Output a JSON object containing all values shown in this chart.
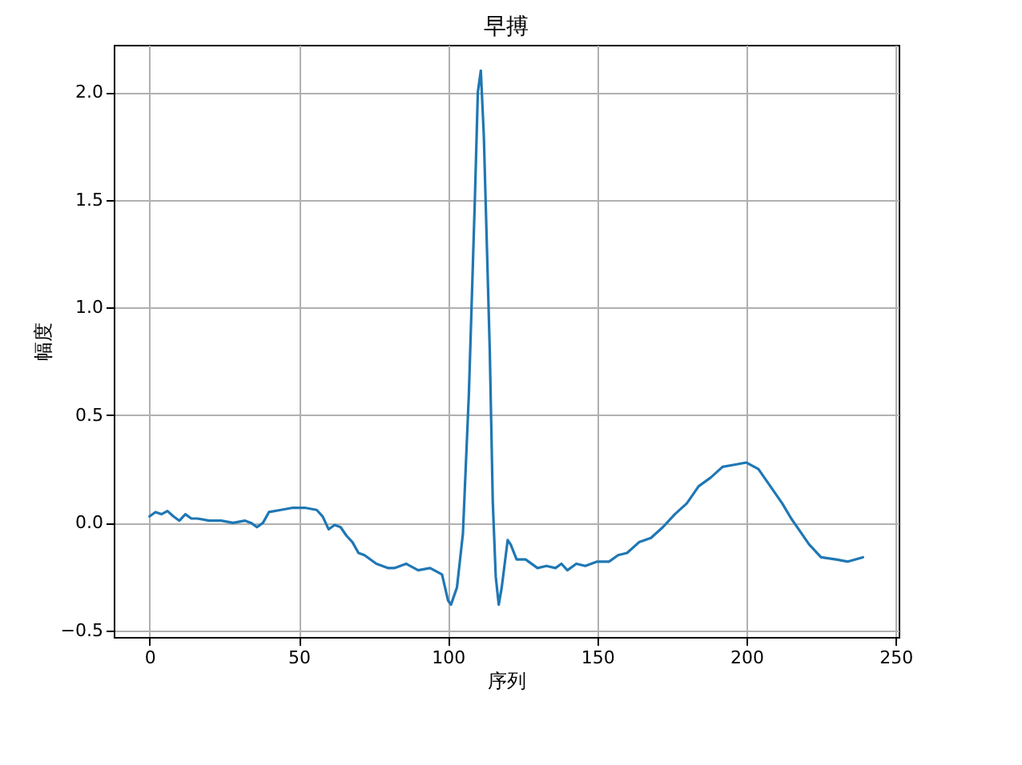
{
  "chart_data": {
    "type": "line",
    "title": "早搏",
    "xlabel": "序列",
    "ylabel": "幅度",
    "x": [
      0,
      2,
      4,
      6,
      8,
      10,
      12,
      14,
      16,
      20,
      24,
      28,
      32,
      34,
      36,
      38,
      40,
      44,
      48,
      52,
      56,
      58,
      60,
      62,
      64,
      66,
      68,
      70,
      72,
      76,
      80,
      82,
      86,
      90,
      94,
      98,
      100,
      101,
      103,
      105,
      107,
      109,
      110,
      111,
      112,
      114,
      115,
      116,
      117,
      118,
      120,
      121,
      123,
      126,
      130,
      133,
      136,
      138,
      140,
      143,
      146,
      150,
      154,
      157,
      160,
      164,
      168,
      172,
      176,
      180,
      184,
      188,
      192,
      196,
      200,
      204,
      208,
      212,
      215,
      218,
      221,
      225,
      230,
      234,
      239
    ],
    "series": [
      {
        "color": "#1f77b4",
        "values": [
          0.03,
          0.05,
          0.04,
          0.055,
          0.03,
          0.01,
          0.04,
          0.02,
          0.02,
          0.01,
          0.01,
          0.0,
          0.01,
          0.0,
          -0.02,
          0.0,
          0.05,
          0.06,
          0.07,
          0.07,
          0.06,
          0.03,
          -0.03,
          -0.01,
          -0.02,
          -0.06,
          -0.09,
          -0.14,
          -0.15,
          -0.19,
          -0.21,
          -0.21,
          -0.19,
          -0.22,
          -0.21,
          -0.24,
          -0.36,
          -0.38,
          -0.3,
          -0.05,
          0.6,
          1.5,
          2.0,
          2.1,
          1.8,
          0.8,
          0.1,
          -0.25,
          -0.38,
          -0.3,
          -0.08,
          -0.1,
          -0.17,
          -0.17,
          -0.21,
          -0.2,
          -0.21,
          -0.19,
          -0.22,
          -0.19,
          -0.2,
          -0.18,
          -0.18,
          -0.15,
          -0.14,
          -0.09,
          -0.07,
          -0.02,
          0.04,
          0.09,
          0.17,
          0.21,
          0.26,
          0.27,
          0.28,
          0.25,
          0.17,
          0.09,
          0.02,
          -0.04,
          -0.1,
          -0.16,
          -0.17,
          -0.18,
          -0.16
        ]
      }
    ],
    "xlim": [
      -12,
      251
    ],
    "ylim": [
      -0.53,
      2.22
    ],
    "xticks": [
      0,
      50,
      100,
      150,
      200,
      250
    ],
    "yticks": [
      {
        "value": -0.5,
        "label": "−0.5"
      },
      {
        "value": 0,
        "label": "0.0"
      },
      {
        "value": 0.5,
        "label": "0.5"
      },
      {
        "value": 1,
        "label": "1.0"
      },
      {
        "value": 1.5,
        "label": "1.5"
      },
      {
        "value": 2,
        "label": "2.0"
      }
    ],
    "grid": true,
    "line_style": "solid"
  }
}
